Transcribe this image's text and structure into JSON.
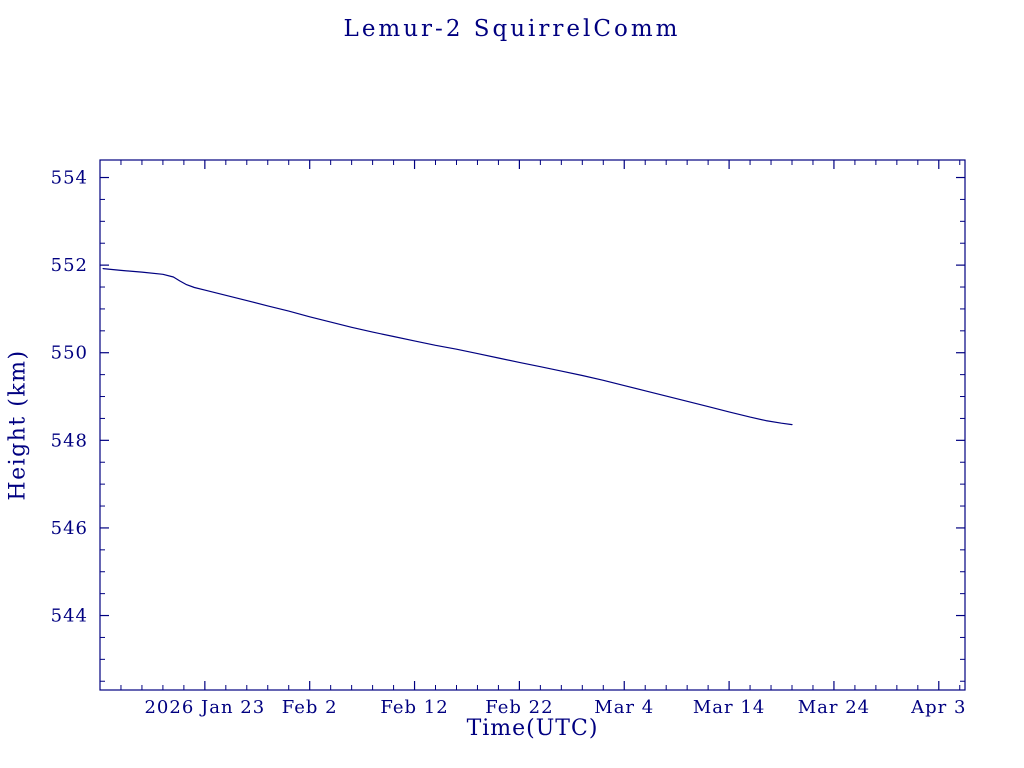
{
  "chart_data": {
    "type": "line",
    "title": "Lemur-2 SquirrelComm",
    "xlabel": "Time(UTC)",
    "ylabel": "Height (km)",
    "background": "#ffffff",
    "axis_color": "#000080",
    "line_color": "#000080",
    "grid": false,
    "legend": false,
    "x_unit": "days since 2026 Jan 13",
    "xlim": [
      0,
      82.5
    ],
    "ylim": [
      542.3,
      554.4
    ],
    "x_minor_step": 2,
    "y_minor_step": 0.5,
    "x_ticks": [
      {
        "value": 10,
        "label": "2026 Jan 23"
      },
      {
        "value": 20,
        "label": "Feb 2"
      },
      {
        "value": 30,
        "label": "Feb 12"
      },
      {
        "value": 40,
        "label": "Feb 22"
      },
      {
        "value": 50,
        "label": "Mar 4"
      },
      {
        "value": 60,
        "label": "Mar 14"
      },
      {
        "value": 70,
        "label": "Mar 24"
      },
      {
        "value": 80,
        "label": "Apr 3"
      }
    ],
    "y_ticks": [
      {
        "value": 544,
        "label": "544"
      },
      {
        "value": 546,
        "label": "546"
      },
      {
        "value": 548,
        "label": "548"
      },
      {
        "value": 550,
        "label": "550"
      },
      {
        "value": 552,
        "label": "552"
      },
      {
        "value": 554,
        "label": "554"
      }
    ],
    "series_name": "Height (km)",
    "points": [
      [
        0.3,
        551.92
      ],
      [
        2,
        551.88
      ],
      [
        4,
        551.84
      ],
      [
        6,
        551.79
      ],
      [
        7,
        551.73
      ],
      [
        7.6,
        551.64
      ],
      [
        8.2,
        551.56
      ],
      [
        9,
        551.49
      ],
      [
        10,
        551.43
      ],
      [
        12,
        551.31
      ],
      [
        14,
        551.19
      ],
      [
        16,
        551.07
      ],
      [
        18,
        550.95
      ],
      [
        20,
        550.82
      ],
      [
        22,
        550.7
      ],
      [
        24,
        550.58
      ],
      [
        26,
        550.47
      ],
      [
        28,
        550.37
      ],
      [
        30,
        550.27
      ],
      [
        32,
        550.17
      ],
      [
        34,
        550.08
      ],
      [
        36,
        549.98
      ],
      [
        38,
        549.88
      ],
      [
        40,
        549.78
      ],
      [
        42,
        549.68
      ],
      [
        44,
        549.58
      ],
      [
        46,
        549.48
      ],
      [
        48,
        549.37
      ],
      [
        50,
        549.25
      ],
      [
        52,
        549.13
      ],
      [
        54,
        549.01
      ],
      [
        56,
        548.89
      ],
      [
        58,
        548.77
      ],
      [
        60,
        548.65
      ],
      [
        62,
        548.53
      ],
      [
        63.5,
        548.45
      ],
      [
        65,
        548.39
      ],
      [
        66,
        548.36
      ]
    ]
  }
}
